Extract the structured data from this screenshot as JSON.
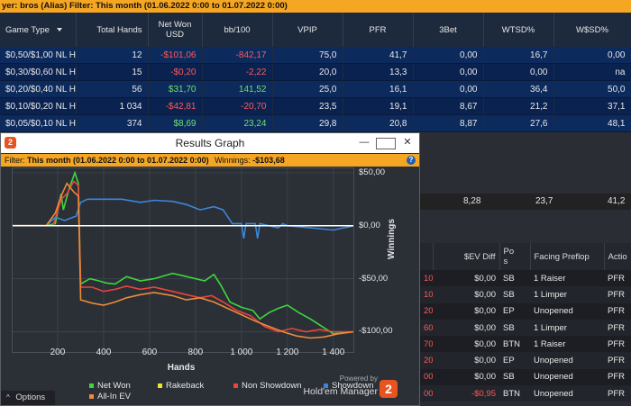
{
  "top": {
    "filter_text": "yer: bros (Alias)  Filter: This month (01.06.2022 0:00 to 01.07.2022 0:00)"
  },
  "stats": {
    "headers": [
      "Game Type",
      "Total Hands",
      "Net Won\nUSD",
      "bb/100",
      "VPIP",
      "PFR",
      "3Bet",
      "WTSD%",
      "W$SD%"
    ],
    "rows": [
      [
        "$0,50/$1,00 NL H",
        "12",
        "-$101,06",
        "-842,17",
        "75,0",
        "41,7",
        "0,00",
        "16,7",
        "0,00"
      ],
      [
        "$0,30/$0,60 NL H",
        "15",
        "-$0,20",
        "-2,22",
        "20,0",
        "13,3",
        "0,00",
        "0,00",
        "na"
      ],
      [
        "$0,20/$0,40 NL H",
        "56",
        "$31,70",
        "141,52",
        "25,0",
        "16,1",
        "0,00",
        "36,4",
        "50,0"
      ],
      [
        "$0,10/$0,20 NL H",
        "1 034",
        "-$42,81",
        "-20,70",
        "23,5",
        "19,1",
        "8,67",
        "21,2",
        "37,1"
      ],
      [
        "$0,05/$0,10 NL H",
        "374",
        "$8,69",
        "23,24",
        "29,8",
        "20,8",
        "8,87",
        "27,6",
        "48,1"
      ]
    ]
  },
  "summary": {
    "threebet": "8,28",
    "wtsd": "23,7",
    "wsd": "41,2"
  },
  "hands_table": {
    "headers": [
      "",
      "$EV Diff",
      "Pos",
      "Facing Preflop",
      "Actio"
    ],
    "rows": [
      [
        "10",
        "$0,00",
        "SB",
        "1 Raiser",
        "PFR"
      ],
      [
        "10",
        "$0,00",
        "SB",
        "1 Limper",
        "PFR"
      ],
      [
        "20",
        "$0,00",
        "EP",
        "Unopened",
        "PFR"
      ],
      [
        "60",
        "$0,00",
        "SB",
        "1 Limper",
        "PFR"
      ],
      [
        "70",
        "$0,00",
        "BTN",
        "1 Raiser",
        "PFR"
      ],
      [
        "20",
        "$0,00",
        "EP",
        "Unopened",
        "PFR"
      ],
      [
        "00",
        "$0,00",
        "SB",
        "Unopened",
        "PFR"
      ],
      [
        "00",
        "-$0,95",
        "BTN",
        "Unopened",
        "PFR"
      ]
    ]
  },
  "graph_window": {
    "title": "Results Graph",
    "app_icon": "2",
    "filter_label": "Filter:",
    "filter_value": "This month (01.06.2022 0:00 to 01.07.2022 0:00)",
    "winnings_label": "Winnings:",
    "winnings_value": "-$103,68",
    "help": "?",
    "options": "Options",
    "brand_line1": "Powered by",
    "brand_line2": "Hold'em Manager",
    "brand_logo": "2"
  },
  "chart_data": {
    "type": "line",
    "xlabel": "Hands",
    "ylabel": "Winnings",
    "xlim": [
      0,
      1491
    ],
    "ylim": [
      -120,
      55
    ],
    "x_ticks": [
      200,
      400,
      600,
      800,
      1000,
      1200,
      1400
    ],
    "x_tick_labels": [
      "200",
      "400",
      "600",
      "800",
      "1 000",
      "1 200",
      "1 400"
    ],
    "y_ticks": [
      50,
      0,
      -50,
      -100
    ],
    "y_tick_labels": [
      "$50,00",
      "$0,00",
      "-$50,00",
      "-$100,00"
    ],
    "grid": true,
    "legend_position": "bottom",
    "series": [
      {
        "name": "Net Won",
        "color": "#3ed63e",
        "x": [
          0,
          150,
          190,
          215,
          225,
          250,
          275,
          290,
          300,
          340,
          380,
          410,
          450,
          500,
          560,
          620,
          700,
          760,
          800,
          840,
          880,
          910,
          950,
          1000,
          1050,
          1080,
          1120,
          1160,
          1200,
          1250,
          1300,
          1350,
          1400,
          1491
        ],
        "y": [
          0,
          0,
          2,
          30,
          15,
          35,
          50,
          40,
          -55,
          -50,
          -52,
          -54,
          -55,
          -48,
          -52,
          -50,
          -45,
          -48,
          -50,
          -52,
          -46,
          -56,
          -72,
          -77,
          -80,
          -88,
          -82,
          -78,
          -75,
          -82,
          -88,
          -95,
          -102,
          -100
        ]
      },
      {
        "name": "Rakeback",
        "color": "#e8e82a",
        "x": [
          0,
          1491
        ],
        "y": [
          0,
          0
        ]
      },
      {
        "name": "Non Showdown",
        "color": "#e8463c",
        "x": [
          0,
          180,
          215,
          240,
          270,
          290,
          300,
          350,
          400,
          450,
          500,
          560,
          620,
          700,
          760,
          820,
          870,
          920,
          980,
          1040,
          1100,
          1160,
          1220,
          1280,
          1340,
          1400,
          1491
        ],
        "y": [
          0,
          0,
          25,
          30,
          42,
          38,
          -58,
          -58,
          -62,
          -60,
          -57,
          -60,
          -58,
          -62,
          -65,
          -68,
          -66,
          -72,
          -80,
          -85,
          -95,
          -100,
          -97,
          -100,
          -98,
          -100,
          -100
        ]
      },
      {
        "name": "Showdown",
        "color": "#3c86d8",
        "x": [
          0,
          150,
          190,
          230,
          280,
          300,
          330,
          400,
          480,
          560,
          620,
          700,
          760,
          820,
          880,
          920,
          960,
          1000,
          1010,
          1020,
          1060,
          1070,
          1080,
          1160,
          1180,
          1200,
          1300,
          1400,
          1491
        ],
        "y": [
          0,
          0,
          8,
          5,
          9,
          22,
          25,
          25,
          25,
          22,
          24,
          23,
          20,
          15,
          18,
          15,
          2,
          2,
          -12,
          2,
          2,
          -12,
          2,
          -2,
          2,
          0,
          -2,
          -4,
          0
        ]
      },
      {
        "name": "All-In EV",
        "color": "#ee8a3c",
        "x": [
          0,
          150,
          190,
          215,
          240,
          270,
          290,
          300,
          350,
          400,
          450,
          500,
          560,
          620,
          700,
          760,
          820,
          880,
          940,
          1000,
          1060,
          1120,
          1180,
          1240,
          1300,
          1360,
          1420,
          1491
        ],
        "y": [
          0,
          0,
          12,
          28,
          40,
          32,
          28,
          -70,
          -73,
          -75,
          -72,
          -68,
          -65,
          -63,
          -66,
          -70,
          -68,
          -72,
          -78,
          -84,
          -90,
          -95,
          -100,
          -104,
          -106,
          -105,
          -102,
          -100
        ]
      }
    ]
  },
  "colors": {
    "accent": "#f5a623",
    "row_bg": "#0d2a5c",
    "positive": "#6fe06f",
    "negative": "#ff5a5a"
  }
}
